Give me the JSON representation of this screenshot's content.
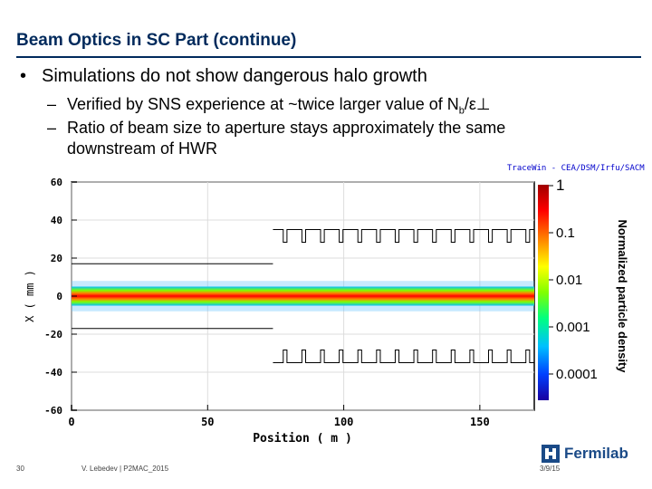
{
  "slide": {
    "title": "Beam Optics in SC Part (continue)",
    "bullet": "Simulations do not show dangerous halo growth",
    "bullet_marker": "•",
    "sub_marker": "–",
    "sub1_text": "Verified by SNS experience at ~twice larger value of N",
    "sub1_subscript": "b",
    "sub1_tail": "/ε⊥",
    "sub2_line1": "Ratio of beam size to aperture stays approximately the same",
    "sub2_line2": "downstream of HWR"
  },
  "plot": {
    "credit": "TraceWin - CEA/DSM/Irfu/SACM",
    "colorbar_label": "Normalized particle density",
    "colorbar_ticks": [
      "1",
      "0.1",
      "0.01",
      "0.001",
      "0.0001"
    ]
  },
  "chart_data": {
    "type": "heatmap",
    "xlabel": "Position ( m )",
    "ylabel": "X ( mm )",
    "xlim": [
      0,
      170
    ],
    "ylim": [
      -60,
      60
    ],
    "x_ticks": [
      "0",
      "50",
      "100",
      "150"
    ],
    "y_ticks": [
      "60",
      "40",
      "20",
      "0",
      "-20",
      "-40",
      "-60"
    ],
    "aperture": {
      "sections": [
        {
          "x_start": 0,
          "x_end": 74,
          "radius_mm": 17
        },
        {
          "x_start": 74,
          "x_end": 170,
          "radius_mm": 35
        }
      ]
    },
    "beam_envelope_mm": 5,
    "colorscale": [
      "#1a00a0",
      "#0040ff",
      "#00c0ff",
      "#00ff80",
      "#c0ff00",
      "#ffff00",
      "#ff8000",
      "#ff0000",
      "#c00000"
    ]
  },
  "footer": {
    "slide_number": "30",
    "author": "V. Lebedev | P2MAC_2015",
    "date": "3/9/15",
    "logo_text": "Fermilab"
  }
}
